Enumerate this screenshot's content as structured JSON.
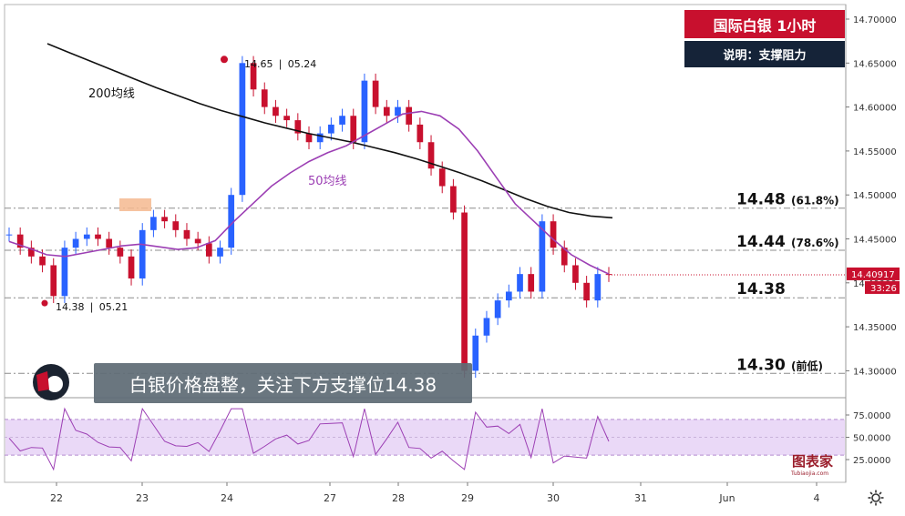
{
  "header": {
    "title": "国际白银 1小时",
    "subtitle": "说明：支撑阻力",
    "caption": "白银价格盘整，关注下方支撑位14.38",
    "logo_text": "图表家",
    "logo_url": "Tubiaojia.com"
  },
  "chart_data": {
    "type": "candlestick",
    "colors": {
      "up": "#2962ff",
      "down": "#c8102e",
      "ma200": "#111111",
      "ma50": "#9c3fb4",
      "rsi": "#9c3fb4",
      "rsi_band": "#ead9f7"
    },
    "price_axis": {
      "min": 14.3,
      "max": 14.7,
      "ticks": [
        "14.70000",
        "14.65000",
        "14.60000",
        "14.55000",
        "14.50000",
        "14.45000",
        "14.40000",
        "14.35000",
        "14.30000"
      ]
    },
    "time_axis": [
      "22",
      "23",
      "24",
      "27",
      "28",
      "29",
      "30",
      "31",
      "Jun",
      "4"
    ],
    "current_price": {
      "value": "14.40917",
      "countdown": "33:26"
    },
    "ma_labels": {
      "ma200": "200均线",
      "ma50": "50均线"
    },
    "annotations": {
      "high": {
        "price": 14.65,
        "text": "14.65  ❘ 05.24"
      },
      "low": {
        "price": 14.38,
        "text": "14.38  ❘ 05.21"
      }
    },
    "levels": [
      {
        "price": 14.485,
        "label": "14.48",
        "note": "(61.8%)"
      },
      {
        "price": 14.437,
        "label": "14.44",
        "note": "(78.6%)"
      },
      {
        "price": 14.383,
        "label": "14.38",
        "note": ""
      },
      {
        "price": 14.297,
        "label": "14.30",
        "note": "(前低)"
      }
    ],
    "rsi": {
      "ticks": [
        "75.0000",
        "50.0000",
        "25.0000"
      ],
      "upper": 70,
      "lower": 30
    },
    "ma200_series": [
      14.672,
      14.662,
      14.652,
      14.642,
      14.632,
      14.622,
      14.613,
      14.604,
      14.596,
      14.589,
      14.582,
      14.576,
      14.57,
      14.565,
      14.56,
      14.554,
      14.548,
      14.541,
      14.533,
      14.525,
      14.516,
      14.506,
      14.496,
      14.487,
      14.48,
      14.476,
      14.474
    ],
    "ma50_series": [
      14.447,
      14.44,
      14.432,
      14.43,
      14.434,
      14.438,
      14.442,
      14.444,
      14.441,
      14.438,
      14.44,
      14.448,
      14.47,
      14.49,
      14.51,
      14.525,
      14.538,
      14.548,
      14.556,
      14.568,
      14.58,
      14.592,
      14.595,
      14.59,
      14.575,
      14.55,
      14.52,
      14.49,
      14.47,
      14.45,
      14.432,
      14.42,
      14.41
    ],
    "closes": [
      14.455,
      14.44,
      14.43,
      14.42,
      14.385,
      14.44,
      14.45,
      14.455,
      14.45,
      14.44,
      14.43,
      14.405,
      14.46,
      14.475,
      14.47,
      14.46,
      14.45,
      14.445,
      14.43,
      14.44,
      14.5,
      14.65,
      14.62,
      14.6,
      14.59,
      14.585,
      14.57,
      14.56,
      14.57,
      14.58,
      14.59,
      14.56,
      14.63,
      14.6,
      14.59,
      14.6,
      14.58,
      14.56,
      14.53,
      14.51,
      14.48,
      14.3,
      14.34,
      14.36,
      14.38,
      14.39,
      14.41,
      14.39,
      14.47,
      14.44,
      14.42,
      14.4,
      14.38,
      14.41,
      14.409
    ]
  }
}
